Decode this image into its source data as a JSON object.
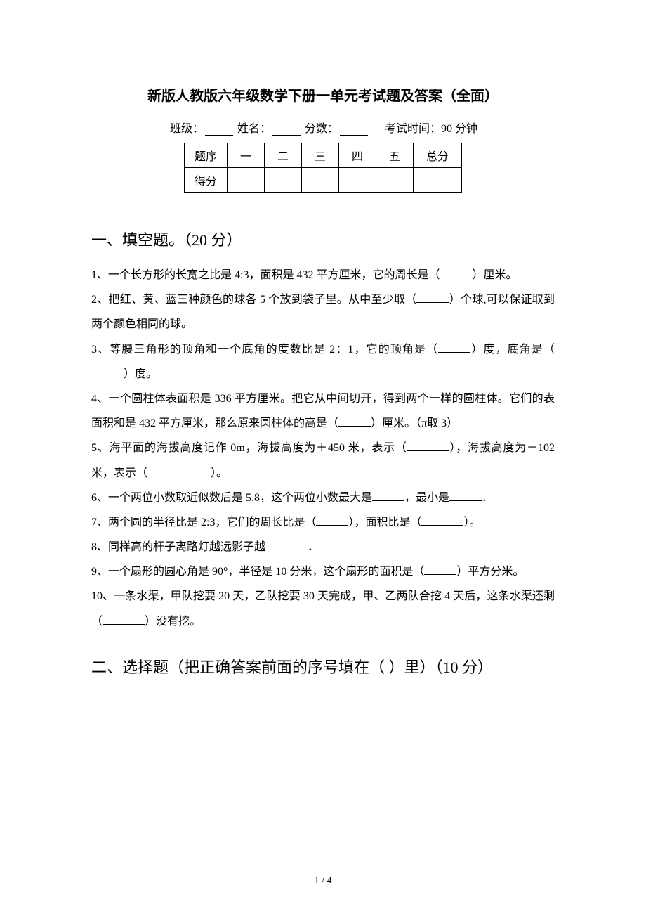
{
  "title": "新版人教版六年级数学下册一单元考试题及答案（全面）",
  "info": {
    "class_label": "班级：",
    "name_label": "姓名：",
    "score_label": "分数：",
    "exam_time_label": "考试时间：90 分钟"
  },
  "score_table": {
    "row1": [
      "题序",
      "一",
      "二",
      "三",
      "四",
      "五",
      "总分"
    ],
    "row2_label": "得分"
  },
  "section1": {
    "heading": "一、填空题。（20 分）",
    "q1_a": "1、一个长方形的长宽之比是 4:3，面积是 432 平方厘米，它的周长是（",
    "q1_b": "）厘米。",
    "q2_a": "2、把红、黄、蓝三种颜色的球各 5 个放到袋子里。从中至少取（",
    "q2_b": "）个球,可以保证取到两个颜色相同的球。",
    "q3_a": "3、等腰三角形的顶角和一个底角的度数比是 2：1，它的顶角是（",
    "q3_b": "）度，底角是（",
    "q3_c": "）度。",
    "q4_a": "4、一个圆柱体表面积是 336 平方厘米。把它从中间切开，得到两个一样的圆柱体。它们的表面积和是 432 平方厘米，那么原来圆柱体的高是（",
    "q4_b": "）厘米。（π取 3）",
    "q5_a": "5、海平面的海拔高度记作 0m，海拔高度为＋450 米，表示（",
    "q5_b": "），海拔高度为－102 米，表示（",
    "q5_c": "）。",
    "q6_a": "6、一个两位小数取近似数后是 5.8，这个两位小数最大是",
    "q6_b": "，最小是",
    "q6_c": "．",
    "q7_a": "7、两个圆的半径比是 2:3，它们的周长比是（",
    "q7_b": "），面积比是（",
    "q7_c": "）。",
    "q8_a": "8、同样高的杆子离路灯越远影子越",
    "q8_b": "．",
    "q9_a": "9、一个扇形的圆心角是 90°，半径是 10 分米，这个扇形的面积是（",
    "q9_b": "）平方分米。",
    "q10_a": "10、一条水渠，甲队挖要 20 天，乙队挖要 30 天完成，甲、乙两队合挖 4 天后，这条水渠还剩（",
    "q10_b": "）没有挖。"
  },
  "section2": {
    "heading": "二、选择题（把正确答案前面的序号填在（ ）里）（10 分）"
  },
  "footer": "1 / 4"
}
